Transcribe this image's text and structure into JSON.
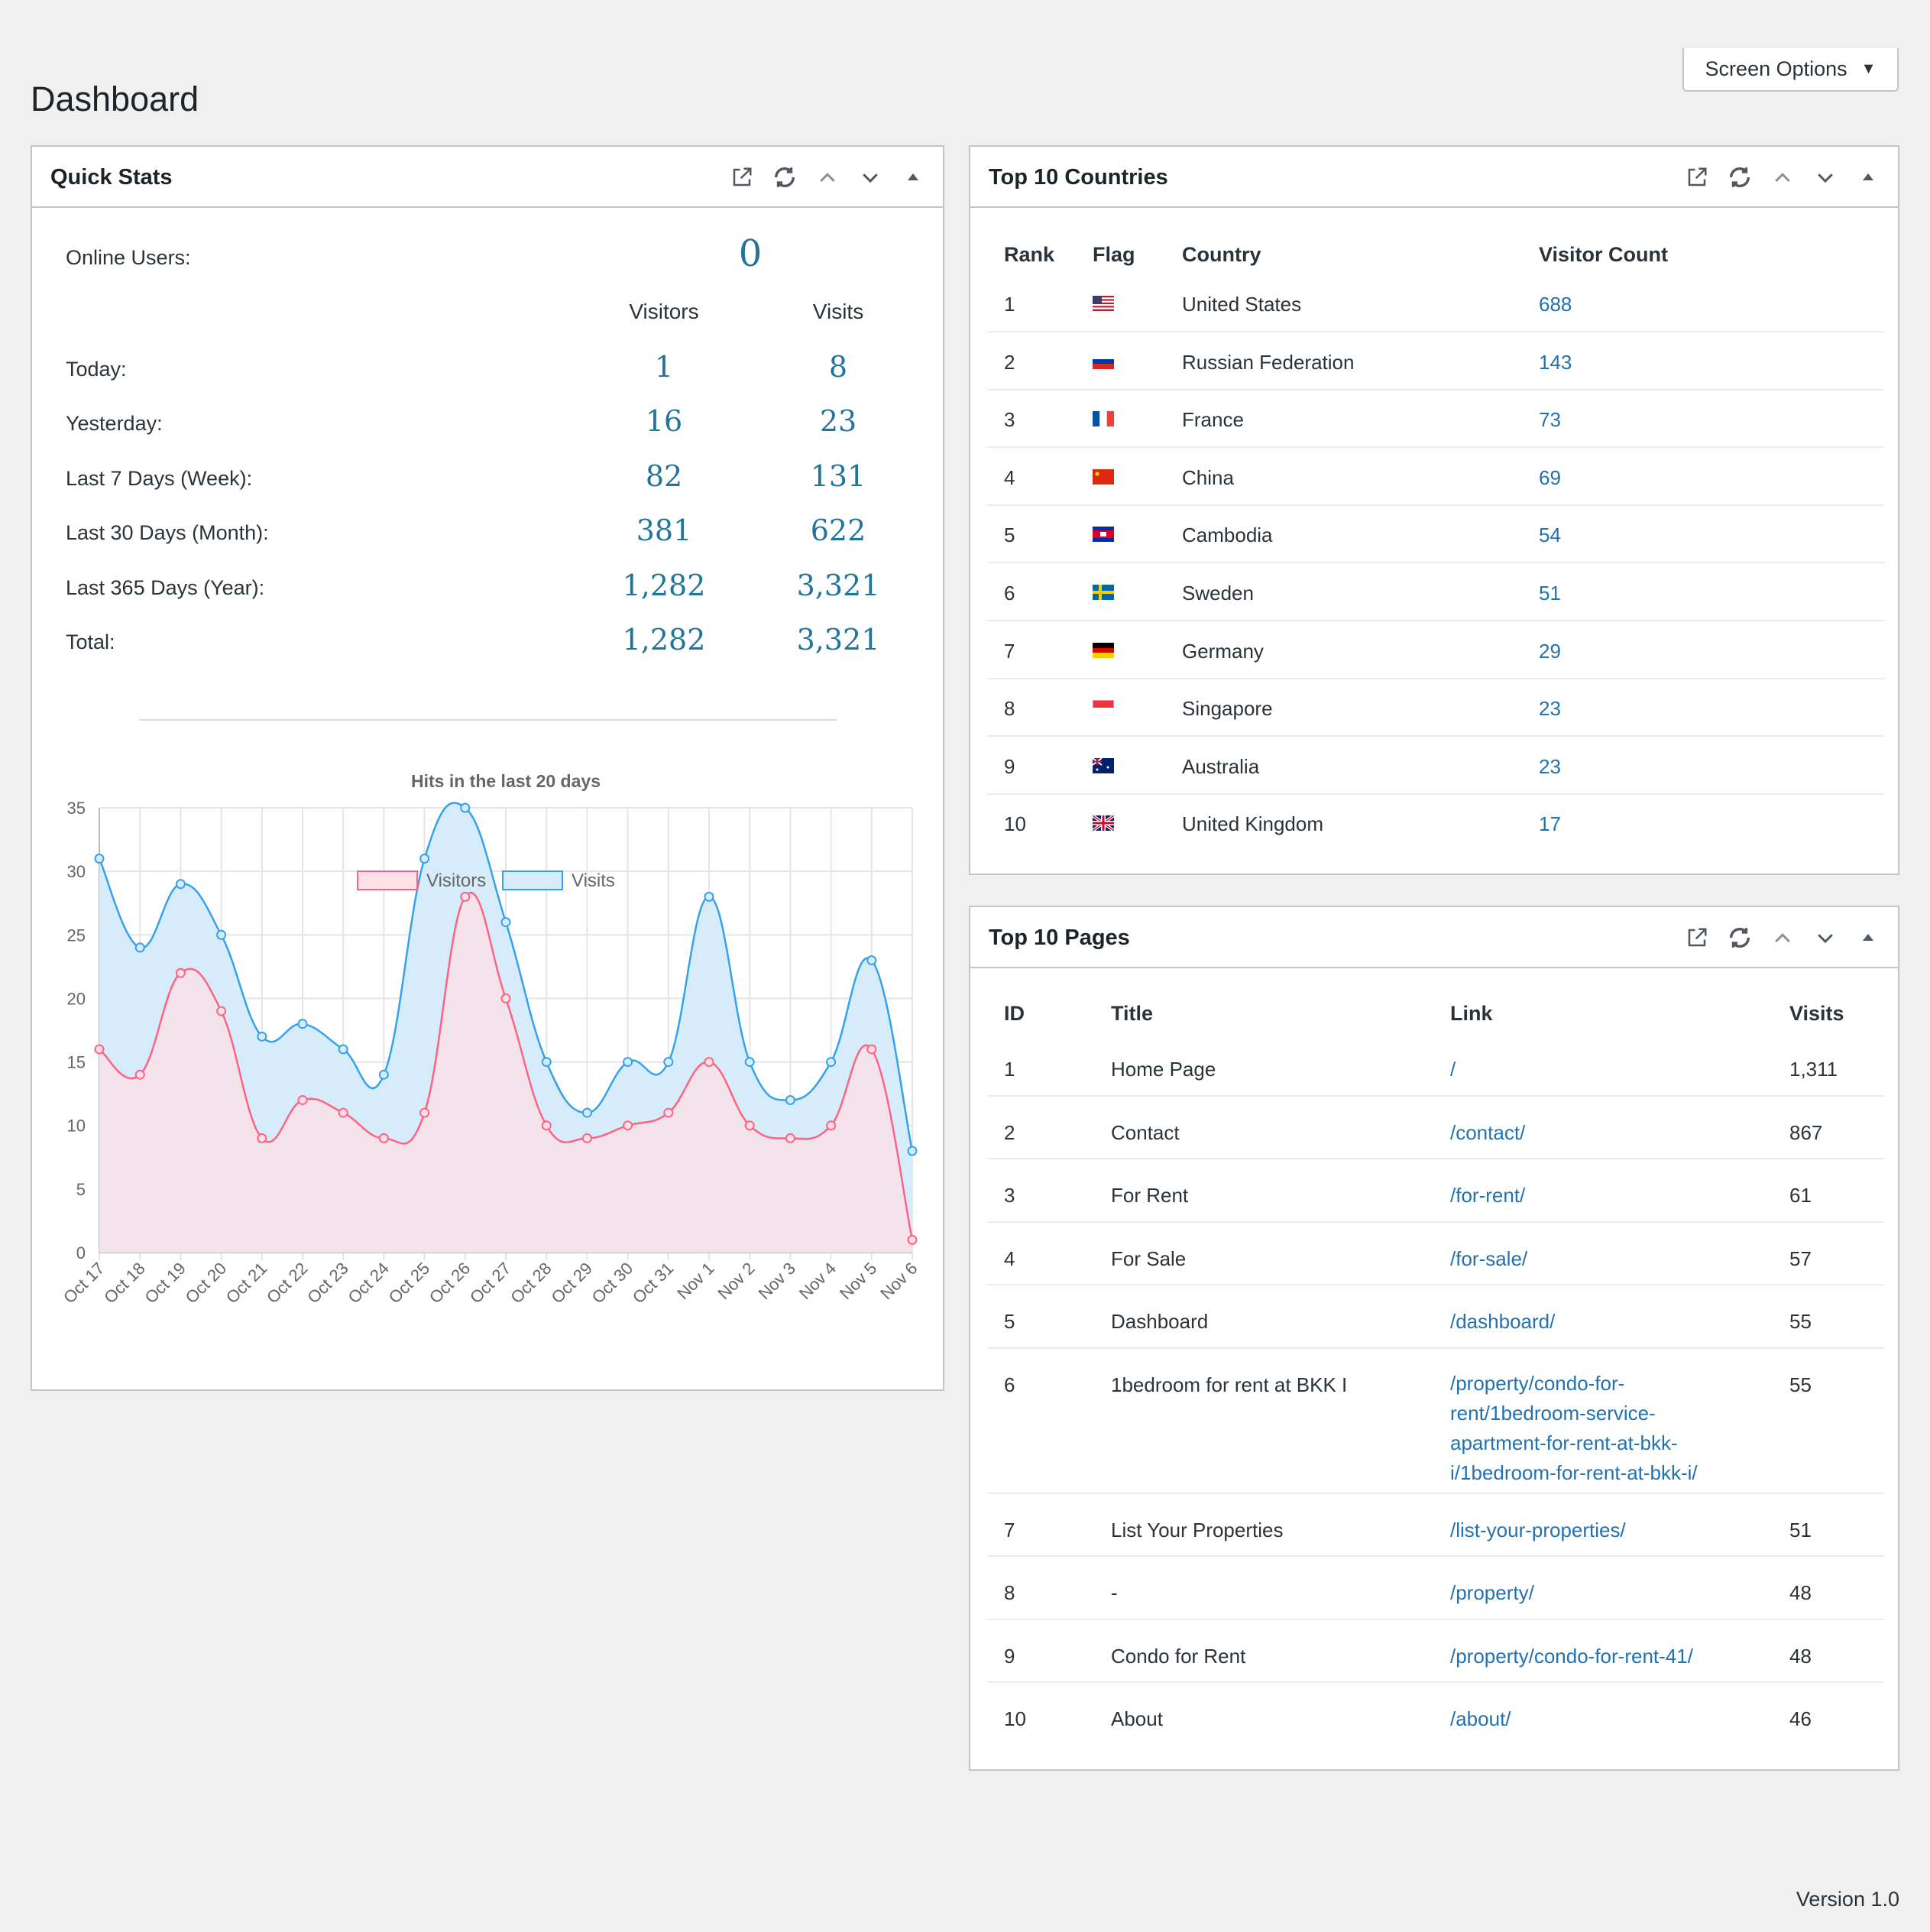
{
  "header": {
    "title": "Dashboard",
    "screen_options_label": "Screen Options"
  },
  "quick_stats": {
    "title": "Quick Stats",
    "online_users_label": "Online Users:",
    "online_users_value": "0",
    "col_visitors": "Visitors",
    "col_visits": "Visits",
    "rows": [
      {
        "label": "Today:",
        "visitors": "1",
        "visits": "8"
      },
      {
        "label": "Yesterday:",
        "visitors": "16",
        "visits": "23"
      },
      {
        "label": "Last 7 Days (Week):",
        "visitors": "82",
        "visits": "131"
      },
      {
        "label": "Last 30 Days (Month):",
        "visitors": "381",
        "visits": "622"
      },
      {
        "label": "Last 365 Days (Year):",
        "visitors": "1,282",
        "visits": "3,321"
      },
      {
        "label": "Total:",
        "visitors": "1,282",
        "visits": "3,321"
      }
    ]
  },
  "chart_data": {
    "type": "line",
    "title": "Hits in the last 20 days",
    "categories": [
      "Oct 17",
      "Oct 18",
      "Oct 19",
      "Oct 20",
      "Oct 21",
      "Oct 22",
      "Oct 23",
      "Oct 24",
      "Oct 25",
      "Oct 26",
      "Oct 27",
      "Oct 28",
      "Oct 29",
      "Oct 30",
      "Oct 31",
      "Nov 1",
      "Nov 2",
      "Nov 3",
      "Nov 4",
      "Nov 5",
      "Nov 6"
    ],
    "series": [
      {
        "name": "Visitors",
        "color": "#ff6384",
        "fill": "#ffe0e6",
        "values": [
          16,
          14,
          22,
          19,
          9,
          12,
          11,
          9,
          11,
          28,
          20,
          10,
          9,
          10,
          11,
          15,
          10,
          9,
          10,
          16,
          1
        ]
      },
      {
        "name": "Visits",
        "color": "#36a2eb",
        "fill": "#d7ecfb",
        "values": [
          31,
          24,
          29,
          25,
          17,
          18,
          16,
          14,
          31,
          35,
          26,
          15,
          11,
          15,
          15,
          28,
          15,
          12,
          15,
          23,
          8
        ]
      }
    ],
    "ylim": [
      0,
      35
    ],
    "yticks": [
      "0",
      "5",
      "10",
      "15",
      "20",
      "25",
      "30",
      "35"
    ],
    "grid": true,
    "legend": "bottom"
  },
  "countries": {
    "title": "Top 10 Countries",
    "headers": [
      "Rank",
      "Flag",
      "Country",
      "Visitor Count"
    ],
    "rows": [
      {
        "rank": "1",
        "flag": "us-flag-icon",
        "country": "United States",
        "count": "688"
      },
      {
        "rank": "2",
        "flag": "ru-flag-icon",
        "country": "Russian Federation",
        "count": "143"
      },
      {
        "rank": "3",
        "flag": "fr-flag-icon",
        "country": "France",
        "count": "73"
      },
      {
        "rank": "4",
        "flag": "cn-flag-icon",
        "country": "China",
        "count": "69"
      },
      {
        "rank": "5",
        "flag": "kh-flag-icon",
        "country": "Cambodia",
        "count": "54"
      },
      {
        "rank": "6",
        "flag": "se-flag-icon",
        "country": "Sweden",
        "count": "51"
      },
      {
        "rank": "7",
        "flag": "de-flag-icon",
        "country": "Germany",
        "count": "29"
      },
      {
        "rank": "8",
        "flag": "sg-flag-icon",
        "country": "Singapore",
        "count": "23"
      },
      {
        "rank": "9",
        "flag": "au-flag-icon",
        "country": "Australia",
        "count": "23"
      },
      {
        "rank": "10",
        "flag": "gb-flag-icon",
        "country": "United Kingdom",
        "count": "17"
      }
    ]
  },
  "pages": {
    "title": "Top 10 Pages",
    "headers": [
      "ID",
      "Title",
      "Link",
      "Visits"
    ],
    "rows": [
      {
        "id": "1",
        "title": "Home Page",
        "link": "/",
        "visits": "1,311"
      },
      {
        "id": "2",
        "title": "Contact",
        "link": "/contact/",
        "visits": "867"
      },
      {
        "id": "3",
        "title": "For Rent",
        "link": "/for-rent/",
        "visits": "61"
      },
      {
        "id": "4",
        "title": "For Sale",
        "link": "/for-sale/",
        "visits": "57"
      },
      {
        "id": "5",
        "title": "Dashboard",
        "link": "/dashboard/",
        "visits": "55"
      },
      {
        "id": "6",
        "title": "1bedroom for rent at BKK I",
        "link": "/property/condo-for-rent/1bedroom-service-apartment-for-rent-at-bkk-i/1bedroom-for-rent-at-bkk-i/",
        "link_lines": [
          "/property/condo-for-",
          "rent/1bedroom-service-",
          "apartment-for-rent-at-bkk-",
          "i/1bedroom-for-rent-at-bkk-i/"
        ],
        "visits": "55"
      },
      {
        "id": "7",
        "title": "List Your Properties",
        "link": "/list-your-properties/",
        "visits": "51"
      },
      {
        "id": "8",
        "title": "-",
        "link": "/property/",
        "visits": "48"
      },
      {
        "id": "9",
        "title": "Condo for Rent",
        "link": "/property/condo-for-rent-41/",
        "visits": "48"
      },
      {
        "id": "10",
        "title": "About",
        "link": "/about/",
        "visits": "46"
      }
    ]
  },
  "footer": {
    "version": "Version 1.0"
  },
  "colors": {
    "accent": "#2271b1",
    "stat_number": "#21759b",
    "border": "#c3c4c7",
    "background": "#f0f0f1"
  }
}
